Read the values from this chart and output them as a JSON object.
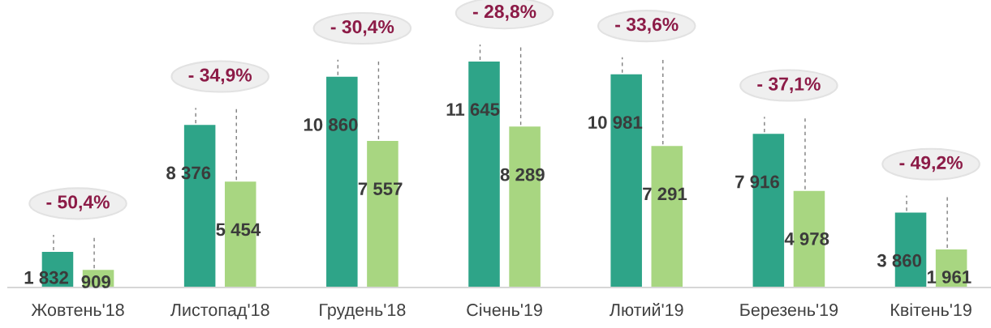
{
  "chart_data": {
    "type": "bar",
    "categories": [
      "Жовтень'18",
      "Листопад'18",
      "Грудень'18",
      "Січень'19",
      "Лютий'19",
      "Березень'19",
      "Квітень'19"
    ],
    "series": [
      {
        "color": "#2ea488",
        "values": [
          1832,
          8376,
          10860,
          11645,
          10981,
          7916,
          3860
        ],
        "value_labels": [
          "1 832",
          "8 376",
          "10 860",
          "11 645",
          "10 981",
          "7 916",
          "3 860"
        ]
      },
      {
        "color": "#a8d681",
        "values": [
          909,
          5454,
          7557,
          8289,
          7291,
          4978,
          1961
        ],
        "value_labels": [
          "909",
          "5 454",
          "7 557",
          "8 289",
          "7 291",
          "4 978",
          "1 961"
        ]
      }
    ],
    "annotations": [
      "- 50,4%",
      "- 34,9%",
      "- 30,4%",
      "- 28,8%",
      "- 33,6%",
      "- 37,1%",
      "- 49,2%"
    ],
    "tick_labels": "x",
    "grid": false,
    "legend": false
  }
}
